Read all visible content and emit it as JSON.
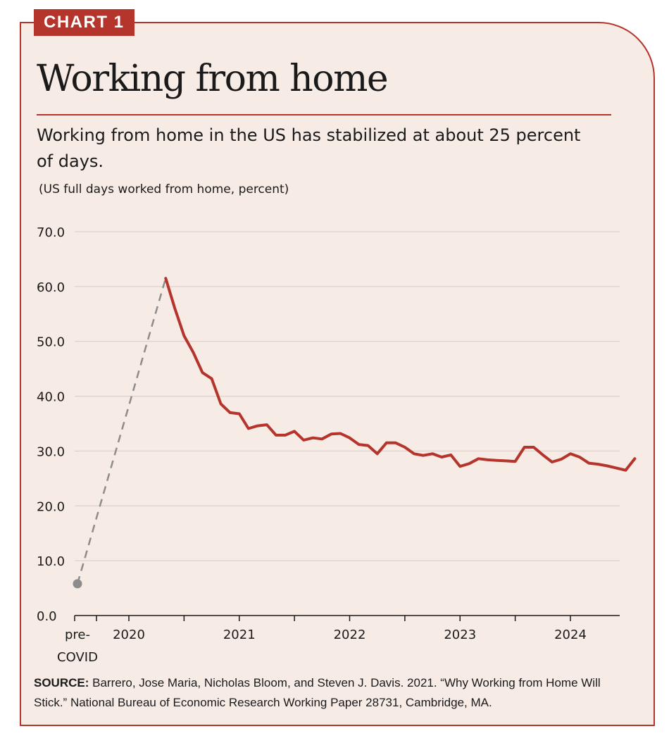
{
  "badge": "CHART 1",
  "title": "Working from home",
  "subtitle": "Working from home in the US has stabilized at about 25 percent of days.",
  "units_note": "(US full days worked from home, percent)",
  "source": {
    "label": "SOURCE:",
    "text": " Barrero, Jose Maria, Nicholas Bloom, and Steven J. Davis. 2021. “Why Working from Home Will Stick.” National Bureau of Economic Research Working Paper 28731, Cambridge, MA."
  },
  "colors": {
    "series": "#b5342b",
    "dashed": "#8c8c8c",
    "grid": "#d9cbc5",
    "background": "#f7ebe6",
    "accent": "#b5342b"
  },
  "chart_data": {
    "type": "line",
    "ylim": [
      0,
      70
    ],
    "grid": true,
    "y_ticks": [
      "0.0",
      "10.0",
      "20.0",
      "30.0",
      "40.0",
      "50.0",
      "60.0",
      "70.0"
    ],
    "x_ticks": [
      {
        "label": "pre-\nCOVID",
        "pos": "pre"
      },
      {
        "label": "2020",
        "year": 2020
      },
      {
        "label": "2021",
        "year": 2021
      },
      {
        "label": "2022",
        "year": 2022
      },
      {
        "label": "2023",
        "year": 2023
      },
      {
        "label": "2024",
        "year": 2024
      }
    ],
    "pre_covid_value": 5.8,
    "series": [
      {
        "start": "2020-05",
        "values": [
          61.5,
          56.0,
          51.0,
          48.0,
          44.3,
          43.2,
          38.6,
          37.0,
          36.8,
          34.1,
          34.6,
          34.8,
          32.9,
          32.9,
          33.6,
          32.0,
          32.4,
          32.2,
          33.1,
          33.2,
          32.4,
          31.2,
          31.0,
          29.5,
          31.5,
          31.5,
          30.7,
          29.5,
          29.2,
          29.5,
          28.9,
          29.3,
          27.2,
          27.7,
          28.6,
          28.4,
          28.3,
          28.2,
          28.1,
          30.7,
          30.7,
          29.3,
          28.0,
          28.5,
          29.5,
          28.9,
          27.8,
          27.6,
          27.3,
          26.9,
          26.5,
          28.6
        ]
      }
    ]
  }
}
